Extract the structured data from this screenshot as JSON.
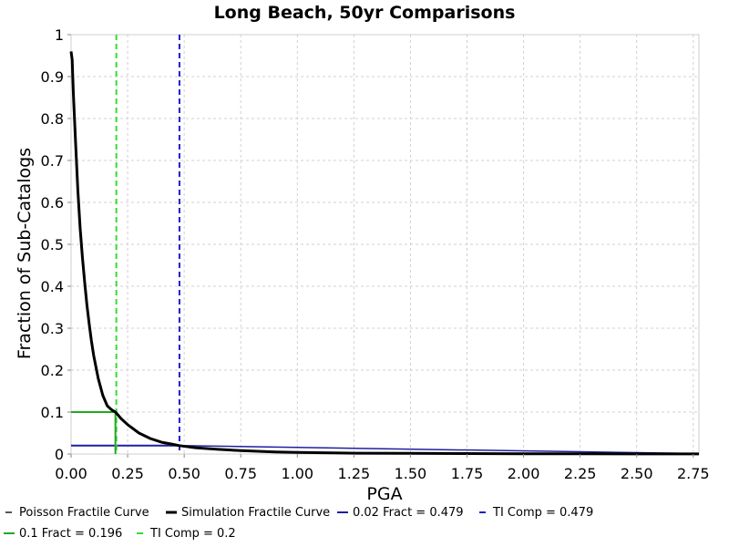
{
  "chart_data": {
    "type": "line",
    "title": "Long Beach, 50yr Comparisons",
    "xlabel": "PGA",
    "ylabel": "Fraction of Sub-Catalogs",
    "xlim": [
      0,
      2.775
    ],
    "ylim": [
      0,
      1
    ],
    "grid": true,
    "legend_placement": "bottom",
    "x_ticks": [
      "0.00",
      "0.25",
      "0.50",
      "0.75",
      "1.00",
      "1.25",
      "1.50",
      "1.75",
      "2.00",
      "2.25",
      "2.50",
      "2.75"
    ],
    "y_ticks": [
      "0",
      "0.1",
      "0.2",
      "0.3",
      "0.4",
      "0.5",
      "0.6",
      "0.7",
      "0.8",
      "0.9",
      "1"
    ],
    "series": [
      {
        "name": "Poisson Fractile Curve",
        "color": "#555555",
        "style": "dashed-swatch",
        "x": [],
        "y": []
      },
      {
        "name": "Simulation Fractile Curve",
        "color": "#000000",
        "style": "solid-thick",
        "x": [
          0.0,
          0.005,
          0.01,
          0.02,
          0.03,
          0.04,
          0.05,
          0.06,
          0.07,
          0.08,
          0.09,
          0.1,
          0.12,
          0.14,
          0.16,
          0.18,
          0.196,
          0.22,
          0.25,
          0.3,
          0.35,
          0.4,
          0.45,
          0.479,
          0.55,
          0.65,
          0.75,
          0.9,
          1.0,
          1.25,
          1.5,
          1.75,
          2.0,
          2.25,
          2.5,
          2.775
        ],
        "y": [
          0.96,
          0.94,
          0.86,
          0.74,
          0.63,
          0.54,
          0.47,
          0.41,
          0.355,
          0.31,
          0.27,
          0.235,
          0.18,
          0.14,
          0.115,
          0.105,
          0.1,
          0.085,
          0.07,
          0.05,
          0.037,
          0.028,
          0.023,
          0.02,
          0.015,
          0.011,
          0.008,
          0.005,
          0.004,
          0.002,
          0.0015,
          0.001,
          0.0007,
          0.0005,
          0.0003,
          0.0002
        ]
      }
    ],
    "markers": [
      {
        "name": "0.02 Fract = 0.479",
        "type": "horizontal-line",
        "y": 0.02,
        "x_end": 0.479,
        "color": "#1f1fa0",
        "style": "solid"
      },
      {
        "name": "TI Comp = 0.479",
        "type": "vertical-line",
        "x": 0.479,
        "color": "#1f1fd0",
        "style": "dashed"
      },
      {
        "name": "0.1 Fract = 0.196",
        "type": "horizontal-line",
        "y": 0.1,
        "x_end": 0.196,
        "color": "#1faa1f",
        "style": "solid"
      },
      {
        "name": "TI Comp = 0.2",
        "type": "vertical-line",
        "x": 0.2,
        "color": "#33dd33",
        "style": "dashed"
      }
    ]
  },
  "legend": {
    "items": [
      {
        "label": "Poisson Fractile Curve",
        "color": "#555555",
        "style": "dash"
      },
      {
        "label": "Simulation Fractile Curve",
        "color": "#000000",
        "style": "thick"
      },
      {
        "label": "0.02 Fract = 0.479",
        "color": "#1f1fa0",
        "style": "solid"
      },
      {
        "label": "TI Comp = 0.479",
        "color": "#1f1fd0",
        "style": "dash"
      },
      {
        "label": "0.1 Fract = 0.196",
        "color": "#1faa1f",
        "style": "solid"
      },
      {
        "label": "TI Comp = 0.2",
        "color": "#33dd33",
        "style": "dash"
      }
    ]
  }
}
